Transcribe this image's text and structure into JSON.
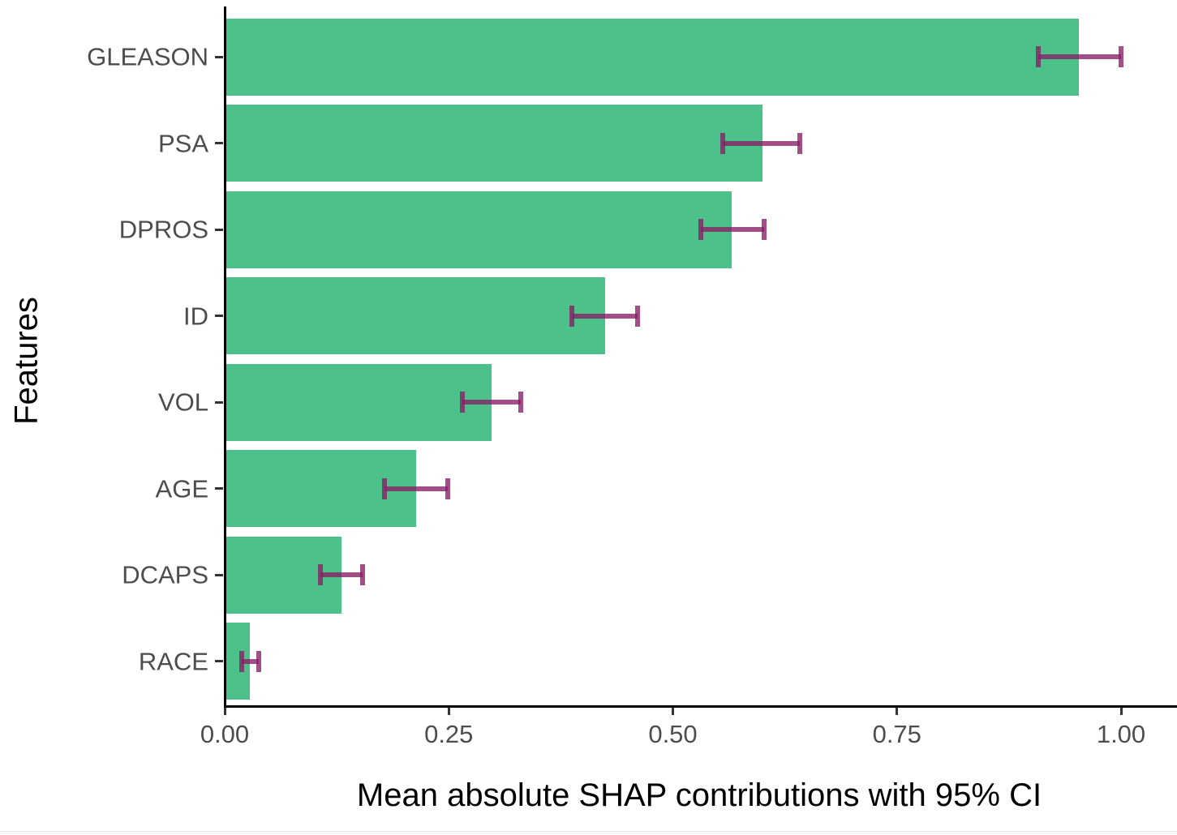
{
  "chart_data": {
    "type": "bar",
    "orientation": "horizontal",
    "title": "",
    "xlabel": "Mean absolute SHAP contributions with 95% CI",
    "ylabel": "Features",
    "categories": [
      "GLEASON",
      "PSA",
      "DPROS",
      "ID",
      "VOL",
      "AGE",
      "DCAPS",
      "RACE"
    ],
    "values": [
      0.953,
      0.6,
      0.566,
      0.424,
      0.298,
      0.214,
      0.13,
      0.028
    ],
    "ci_low": [
      0.908,
      0.556,
      0.531,
      0.387,
      0.265,
      0.178,
      0.107,
      0.019
    ],
    "ci_high": [
      1.0,
      0.642,
      0.602,
      0.46,
      0.33,
      0.249,
      0.154,
      0.038
    ],
    "x_ticks": [
      "0.00",
      "0.25",
      "0.50",
      "0.75",
      "1.00"
    ],
    "x_tick_values": [
      0,
      0.25,
      0.5,
      0.75,
      1.0
    ],
    "xlim": [
      0,
      1.059
    ],
    "grid": false,
    "legend": "none",
    "colors": {
      "bar": "#4CC28A",
      "errorbar": "rgba(135, 30, 100, 0.78)",
      "axis": "#000000",
      "tick": "#333333",
      "axis_text": "#4d4d4d",
      "axis_title": "#000000"
    }
  }
}
